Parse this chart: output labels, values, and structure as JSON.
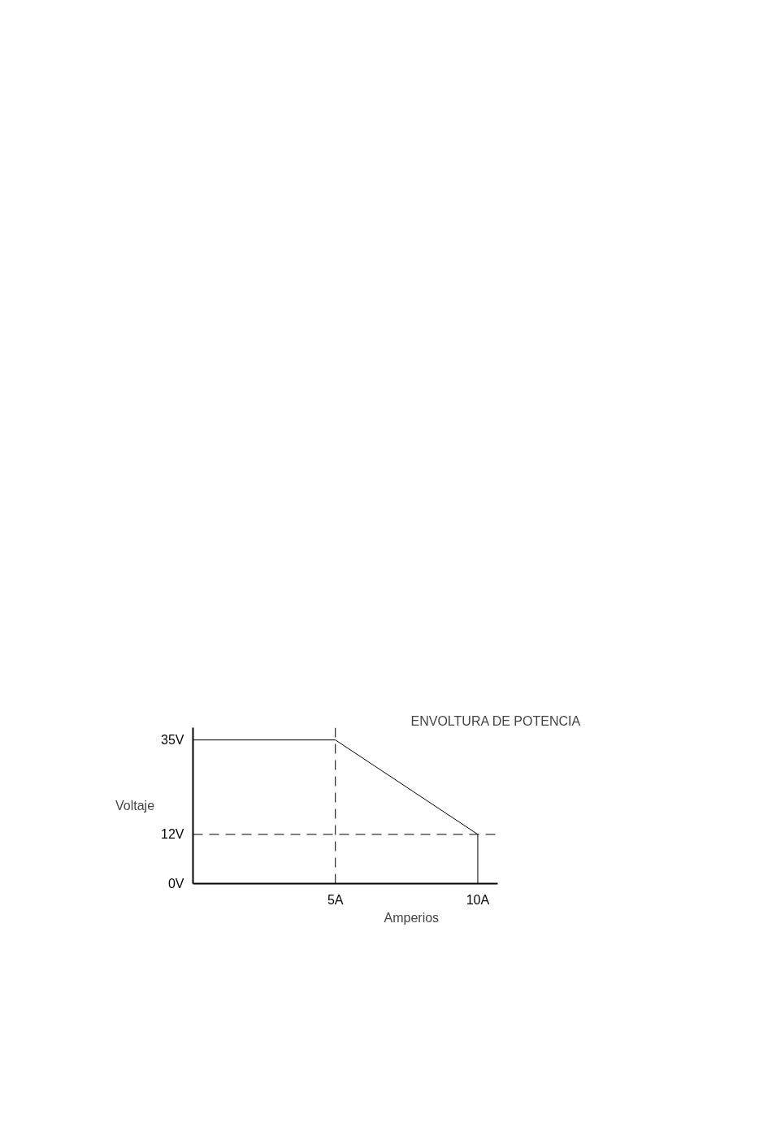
{
  "chart_data": {
    "type": "line",
    "xlabel": "Amperios",
    "ylabel": "Voltaje",
    "annotations": [
      "ENVOLTURA DE POTENCIA"
    ],
    "x": [
      0,
      5,
      10,
      10
    ],
    "series": [
      {
        "color": "#000000",
        "values": [
          35,
          35,
          12,
          0
        ]
      }
    ],
    "xlim": [
      0,
      10.7
    ],
    "ylim": [
      0,
      38
    ],
    "xticks": [
      {
        "value": 5,
        "label": "5A"
      },
      {
        "value": 10,
        "label": "10A"
      }
    ],
    "yticks": [
      {
        "value": 0,
        "label": "0V"
      },
      {
        "value": 12,
        "label": "12V"
      },
      {
        "value": 35,
        "label": "35V"
      }
    ],
    "ref_lines": [
      {
        "axis": "x",
        "value": 5,
        "line_style": "dashed",
        "color": "#000000"
      },
      {
        "axis": "y",
        "value": 12,
        "line_style": "dashed",
        "color": "#000000"
      }
    ],
    "grid": false,
    "marker": "none",
    "line_style": "solid"
  }
}
